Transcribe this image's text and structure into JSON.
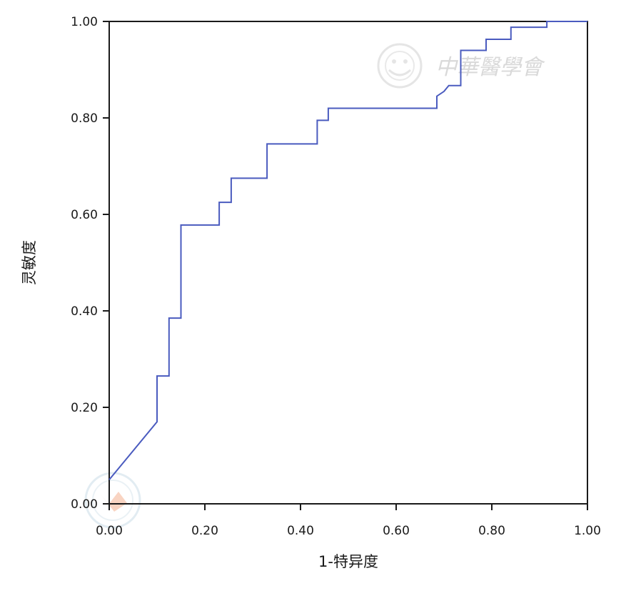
{
  "chart_data": {
    "type": "line",
    "title": "",
    "xlabel": "1-特异度",
    "ylabel": "灵敏度",
    "xlim": [
      0,
      1
    ],
    "ylim": [
      0,
      1
    ],
    "x_ticks": [
      "0.00",
      "0.20",
      "0.40",
      "0.60",
      "0.80",
      "1.00"
    ],
    "y_ticks": [
      "0.00",
      "0.20",
      "0.40",
      "0.60",
      "0.80",
      "1.00"
    ],
    "grid": false,
    "legend": "none",
    "line_color": "#4a5bbf",
    "series": [
      {
        "x": [
          0.0,
          0.1,
          0.1,
          0.11,
          0.125,
          0.125,
          0.15,
          0.15,
          0.23,
          0.23,
          0.255,
          0.255,
          0.33,
          0.33,
          0.435,
          0.435,
          0.458,
          0.458,
          0.685,
          0.685,
          0.7,
          0.71,
          0.735,
          0.735,
          0.788,
          0.788,
          0.84,
          0.84,
          0.915,
          0.915,
          1.0
        ],
        "y": [
          0.05,
          0.17,
          0.265,
          0.265,
          0.265,
          0.385,
          0.385,
          0.578,
          0.578,
          0.625,
          0.625,
          0.675,
          0.675,
          0.746,
          0.746,
          0.795,
          0.795,
          0.82,
          0.82,
          0.845,
          0.855,
          0.867,
          0.867,
          0.94,
          0.94,
          0.963,
          0.963,
          0.988,
          0.988,
          1.0,
          1.0
        ]
      }
    ]
  },
  "watermark": {
    "text": "中華醫學會",
    "color": "#d9d9d9"
  }
}
